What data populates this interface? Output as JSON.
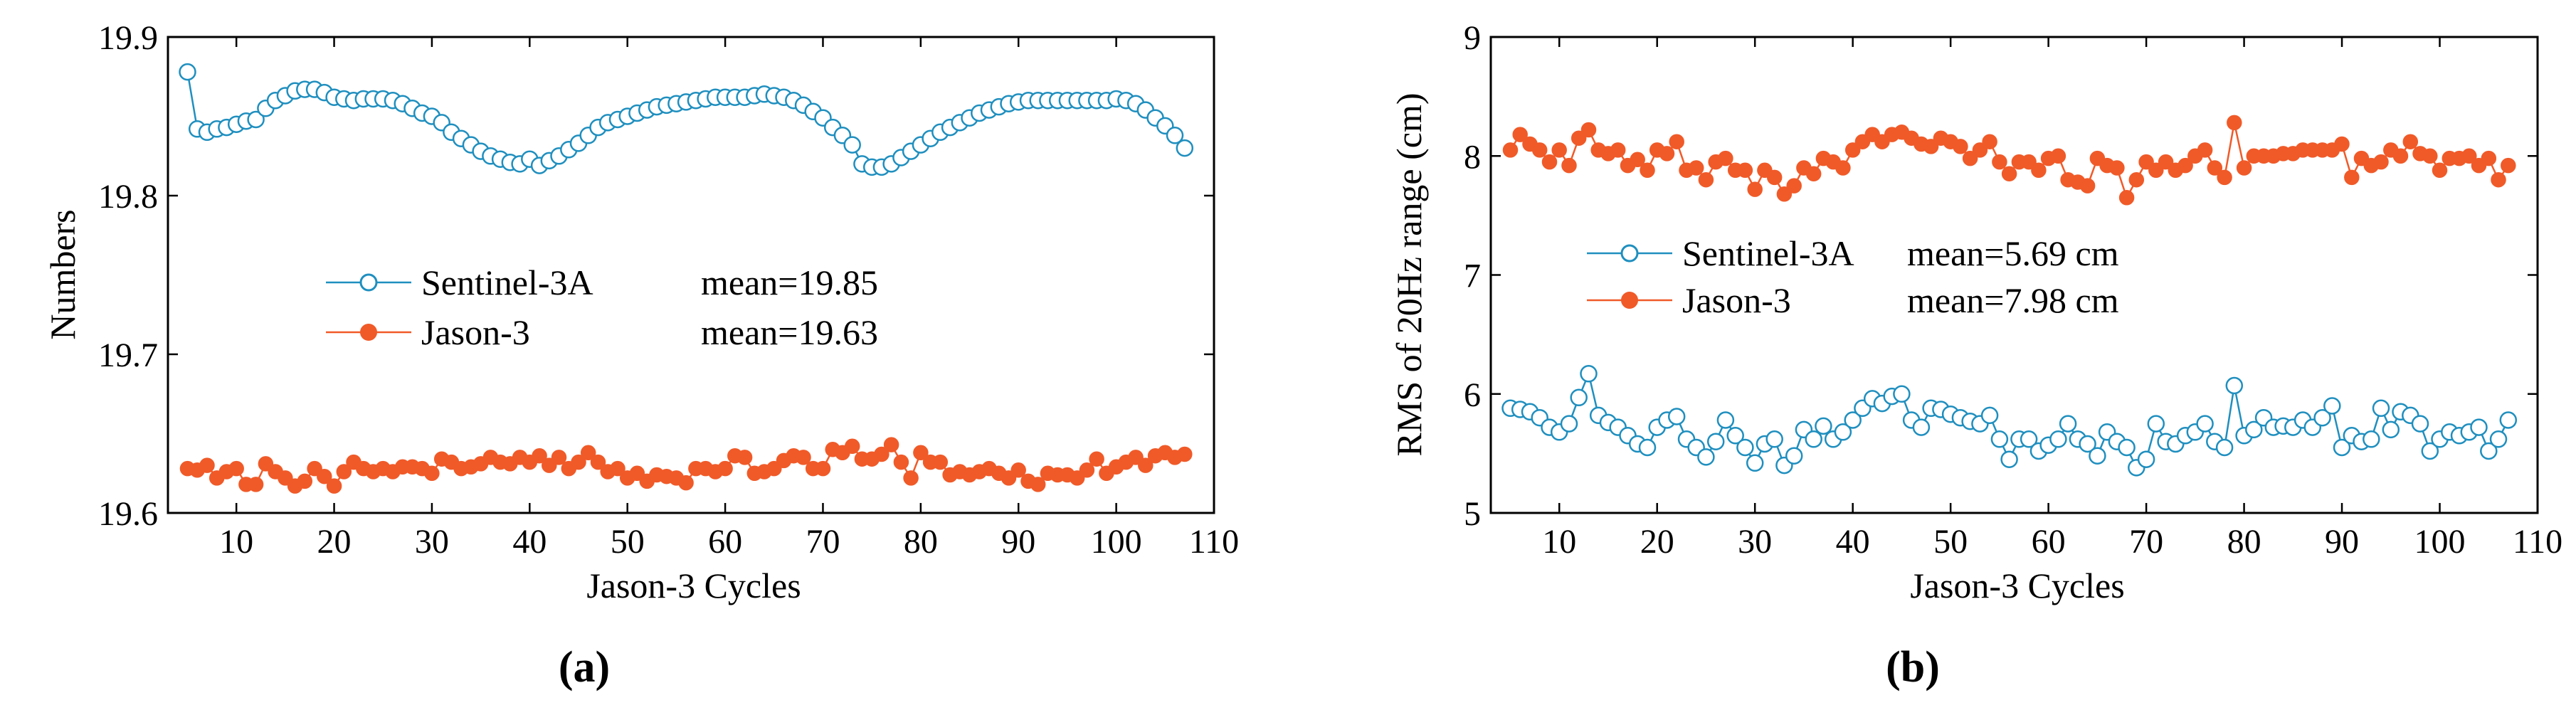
{
  "chart_data": [
    {
      "type": "line",
      "panel_label": "(a)",
      "xlabel": "Jason-3 Cycles",
      "ylabel": "Numbers",
      "xlim": [
        3,
        110
      ],
      "ylim": [
        19.6,
        19.9
      ],
      "xticks": [
        10,
        20,
        30,
        40,
        50,
        60,
        70,
        80,
        90,
        100,
        110
      ],
      "yticks": [
        19.6,
        19.7,
        19.8,
        19.9
      ],
      "legend_placement": "center-left",
      "series": [
        {
          "name": "Sentinel-3A",
          "mean_label": "mean=19.85",
          "color": "#1f8fbf",
          "marker": "open-circle",
          "x": [
            5,
            6,
            7,
            8,
            9,
            10,
            11,
            12,
            13,
            14,
            15,
            16,
            17,
            18,
            19,
            20,
            21,
            22,
            23,
            24,
            25,
            26,
            27,
            28,
            29,
            30,
            31,
            32,
            33,
            34,
            35,
            36,
            37,
            38,
            39,
            40,
            41,
            42,
            43,
            44,
            45,
            46,
            47,
            48,
            49,
            50,
            51,
            52,
            53,
            54,
            55,
            56,
            57,
            58,
            59,
            60,
            61,
            62,
            63,
            64,
            65,
            66,
            67,
            68,
            69,
            70,
            71,
            72,
            73,
            74,
            75,
            76,
            77,
            78,
            79,
            80,
            81,
            82,
            83,
            84,
            85,
            86,
            87,
            88,
            89,
            90,
            91,
            92,
            93,
            94,
            95,
            96,
            97,
            98,
            99,
            100,
            101,
            102,
            103,
            104,
            105,
            106,
            107
          ],
          "values": [
            19.878,
            19.842,
            19.84,
            19.842,
            19.843,
            19.845,
            19.847,
            19.848,
            19.855,
            19.86,
            19.863,
            19.866,
            19.867,
            19.867,
            19.865,
            19.862,
            19.861,
            19.86,
            19.861,
            19.861,
            19.861,
            19.86,
            19.858,
            19.855,
            19.852,
            19.85,
            19.846,
            19.84,
            19.836,
            19.832,
            19.828,
            19.825,
            19.823,
            19.821,
            19.82,
            19.823,
            19.819,
            19.822,
            19.825,
            19.829,
            19.833,
            19.838,
            19.843,
            19.846,
            19.848,
            19.85,
            19.852,
            19.854,
            19.856,
            19.857,
            19.858,
            19.859,
            19.86,
            19.861,
            19.862,
            19.862,
            19.862,
            19.862,
            19.863,
            19.864,
            19.863,
            19.862,
            19.86,
            19.857,
            19.853,
            19.849,
            19.843,
            19.838,
            19.832,
            19.82,
            19.818,
            19.818,
            19.82,
            19.824,
            19.828,
            19.832,
            19.836,
            19.84,
            19.843,
            19.846,
            19.849,
            19.852,
            19.854,
            19.856,
            19.858,
            19.859,
            19.86,
            19.86,
            19.86,
            19.86,
            19.86,
            19.86,
            19.86,
            19.86,
            19.86,
            19.861,
            19.86,
            19.858,
            19.854,
            19.849,
            19.844,
            19.838,
            19.83
          ]
        },
        {
          "name": "Jason-3",
          "mean_label": "mean=19.63",
          "color": "#f05a28",
          "marker": "filled-circle",
          "x": [
            5,
            6,
            7,
            8,
            9,
            10,
            11,
            12,
            13,
            14,
            15,
            16,
            17,
            18,
            19,
            20,
            21,
            22,
            23,
            24,
            25,
            26,
            27,
            28,
            29,
            30,
            31,
            32,
            33,
            34,
            35,
            36,
            37,
            38,
            39,
            40,
            41,
            42,
            43,
            44,
            45,
            46,
            47,
            48,
            49,
            50,
            51,
            52,
            53,
            54,
            55,
            56,
            57,
            58,
            59,
            60,
            61,
            62,
            63,
            64,
            65,
            66,
            67,
            68,
            69,
            70,
            71,
            72,
            73,
            74,
            75,
            76,
            77,
            78,
            79,
            80,
            81,
            82,
            83,
            84,
            85,
            86,
            87,
            88,
            89,
            90,
            91,
            92,
            93,
            94,
            95,
            96,
            97,
            98,
            99,
            100,
            101,
            102,
            103,
            104,
            105,
            106,
            107
          ],
          "values": [
            19.628,
            19.627,
            19.63,
            19.622,
            19.626,
            19.628,
            19.618,
            19.618,
            19.631,
            19.626,
            19.622,
            19.617,
            19.62,
            19.628,
            19.623,
            19.617,
            19.626,
            19.632,
            19.628,
            19.626,
            19.628,
            19.626,
            19.629,
            19.629,
            19.628,
            19.625,
            19.634,
            19.632,
            19.628,
            19.629,
            19.631,
            19.635,
            19.632,
            19.631,
            19.635,
            19.632,
            19.636,
            19.63,
            19.635,
            19.628,
            19.632,
            19.638,
            19.632,
            19.626,
            19.628,
            19.622,
            19.625,
            19.62,
            19.624,
            19.623,
            19.622,
            19.619,
            19.628,
            19.628,
            19.626,
            19.628,
            19.636,
            19.635,
            19.625,
            19.626,
            19.628,
            19.633,
            19.636,
            19.635,
            19.628,
            19.628,
            19.64,
            19.638,
            19.642,
            19.634,
            19.634,
            19.637,
            19.643,
            19.632,
            19.622,
            19.638,
            19.632,
            19.632,
            19.624,
            19.626,
            19.624,
            19.626,
            19.628,
            19.625,
            19.622,
            19.627,
            19.62,
            19.618,
            19.625,
            19.624,
            19.624,
            19.622,
            19.627,
            19.634,
            19.625,
            19.629,
            19.632,
            19.635,
            19.63,
            19.636,
            19.638,
            19.635,
            19.637
          ]
        }
      ]
    },
    {
      "type": "line",
      "panel_label": "(b)",
      "xlabel": "Jason-3 Cycles",
      "ylabel": "RMS of 20Hz range (cm)",
      "xlim": [
        3,
        110
      ],
      "ylim": [
        5,
        9
      ],
      "xticks": [
        10,
        20,
        30,
        40,
        50,
        60,
        70,
        80,
        90,
        100,
        110
      ],
      "yticks": [
        5,
        6,
        7,
        8,
        9
      ],
      "legend_placement": "center-left",
      "series": [
        {
          "name": "Sentinel-3A",
          "mean_label": "mean=5.69 cm",
          "color": "#1f8fbf",
          "marker": "open-circle",
          "x": [
            5,
            6,
            7,
            8,
            9,
            10,
            11,
            12,
            13,
            14,
            15,
            16,
            17,
            18,
            19,
            20,
            21,
            22,
            23,
            24,
            25,
            26,
            27,
            28,
            29,
            30,
            31,
            32,
            33,
            34,
            35,
            36,
            37,
            38,
            39,
            40,
            41,
            42,
            43,
            44,
            45,
            46,
            47,
            48,
            49,
            50,
            51,
            52,
            53,
            54,
            55,
            56,
            57,
            58,
            59,
            60,
            61,
            62,
            63,
            64,
            65,
            66,
            67,
            68,
            69,
            70,
            71,
            72,
            73,
            74,
            75,
            76,
            77,
            78,
            79,
            80,
            81,
            82,
            83,
            84,
            85,
            86,
            87,
            88,
            89,
            90,
            91,
            92,
            93,
            94,
            95,
            96,
            97,
            98,
            99,
            100,
            101,
            102,
            103,
            104,
            105,
            106,
            107
          ],
          "values": [
            5.88,
            5.87,
            5.85,
            5.8,
            5.72,
            5.68,
            5.75,
            5.97,
            6.17,
            5.82,
            5.76,
            5.72,
            5.65,
            5.58,
            5.55,
            5.72,
            5.78,
            5.81,
            5.62,
            5.55,
            5.47,
            5.6,
            5.78,
            5.65,
            5.55,
            5.42,
            5.58,
            5.62,
            5.4,
            5.48,
            5.7,
            5.62,
            5.73,
            5.62,
            5.68,
            5.78,
            5.88,
            5.96,
            5.92,
            5.98,
            6.0,
            5.78,
            5.72,
            5.88,
            5.87,
            5.83,
            5.8,
            5.77,
            5.75,
            5.82,
            5.62,
            5.45,
            5.62,
            5.62,
            5.52,
            5.57,
            5.62,
            5.75,
            5.62,
            5.58,
            5.48,
            5.68,
            5.6,
            5.55,
            5.38,
            5.45,
            5.75,
            5.6,
            5.58,
            5.65,
            5.68,
            5.75,
            5.6,
            5.55,
            6.07,
            5.65,
            5.7,
            5.8,
            5.72,
            5.73,
            5.72,
            5.78,
            5.72,
            5.8,
            5.9,
            5.55,
            5.65,
            5.6,
            5.62,
            5.88,
            5.7,
            5.85,
            5.82,
            5.75,
            5.52,
            5.62,
            5.68,
            5.65,
            5.68,
            5.72,
            5.52,
            5.62,
            5.78
          ]
        },
        {
          "name": "Jason-3",
          "mean_label": "mean=7.98 cm",
          "color": "#f05a28",
          "marker": "filled-circle",
          "x": [
            5,
            6,
            7,
            8,
            9,
            10,
            11,
            12,
            13,
            14,
            15,
            16,
            17,
            18,
            19,
            20,
            21,
            22,
            23,
            24,
            25,
            26,
            27,
            28,
            29,
            30,
            31,
            32,
            33,
            34,
            35,
            36,
            37,
            38,
            39,
            40,
            41,
            42,
            43,
            44,
            45,
            46,
            47,
            48,
            49,
            50,
            51,
            52,
            53,
            54,
            55,
            56,
            57,
            58,
            59,
            60,
            61,
            62,
            63,
            64,
            65,
            66,
            67,
            68,
            69,
            70,
            71,
            72,
            73,
            74,
            75,
            76,
            77,
            78,
            79,
            80,
            81,
            82,
            83,
            84,
            85,
            86,
            87,
            88,
            89,
            90,
            91,
            92,
            93,
            94,
            95,
            96,
            97,
            98,
            99,
            100,
            101,
            102,
            103,
            104,
            105,
            106,
            107
          ],
          "values": [
            8.05,
            8.18,
            8.1,
            8.05,
            7.95,
            8.05,
            7.92,
            8.15,
            8.22,
            8.05,
            8.02,
            8.05,
            7.92,
            7.97,
            7.88,
            8.05,
            8.02,
            8.12,
            7.88,
            7.9,
            7.8,
            7.95,
            7.98,
            7.88,
            7.88,
            7.72,
            7.88,
            7.82,
            7.68,
            7.75,
            7.9,
            7.85,
            7.98,
            7.95,
            7.9,
            8.05,
            8.12,
            8.18,
            8.12,
            8.18,
            8.2,
            8.15,
            8.1,
            8.08,
            8.15,
            8.12,
            8.08,
            7.98,
            8.05,
            8.12,
            7.95,
            7.85,
            7.95,
            7.95,
            7.88,
            7.98,
            8.0,
            7.8,
            7.78,
            7.75,
            7.98,
            7.92,
            7.9,
            7.65,
            7.8,
            7.95,
            7.88,
            7.95,
            7.88,
            7.92,
            8.0,
            8.05,
            7.9,
            7.82,
            8.28,
            7.9,
            8.0,
            8.0,
            8.0,
            8.02,
            8.02,
            8.05,
            8.05,
            8.05,
            8.05,
            8.1,
            7.82,
            7.98,
            7.92,
            7.95,
            8.05,
            8.0,
            8.12,
            8.02,
            8.0,
            7.88,
            7.98,
            7.98,
            8.0,
            7.92,
            7.98,
            7.8,
            7.92
          ]
        }
      ]
    }
  ]
}
